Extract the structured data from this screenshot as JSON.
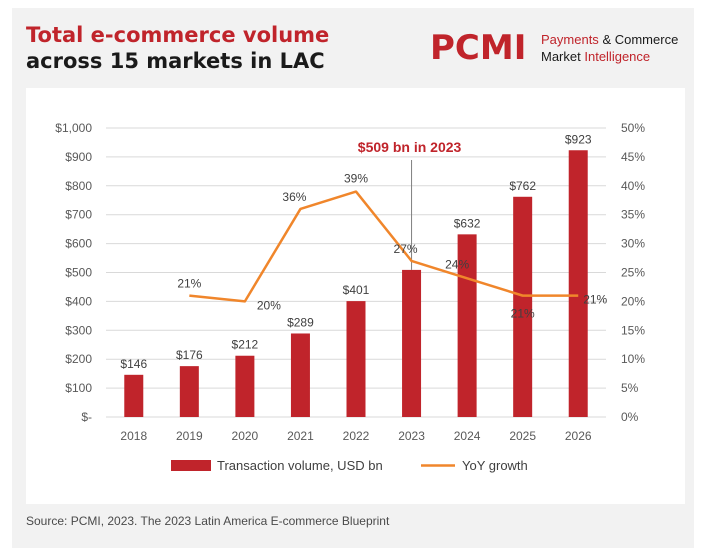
{
  "title": {
    "line1": "Total e-commerce volume",
    "line2": "across 15 markets in LAC"
  },
  "logo": {
    "mark": "PCMI",
    "line1_a": "Payments",
    "line1_amp": "&",
    "line1_b": "Commerce",
    "line2_a": "Market",
    "line2_b": "Intelligence"
  },
  "source": "Source: PCMI, 2023. The 2023 Latin America E-commerce Blueprint",
  "colors": {
    "bar": "#c0242b",
    "line": "#f0862b",
    "accent": "#c0242b"
  },
  "chart_data": {
    "type": "bar",
    "categories": [
      "2018",
      "2019",
      "2020",
      "2021",
      "2022",
      "2023",
      "2024",
      "2025",
      "2026"
    ],
    "series": [
      {
        "name": "Transaction volume, USD bn",
        "type": "bar",
        "axis": "left",
        "values": [
          146,
          176,
          212,
          289,
          401,
          509,
          632,
          762,
          923
        ],
        "labels": [
          "$146",
          "$176",
          "$212",
          "$289",
          "$401",
          "",
          "$632",
          "$762",
          "$923"
        ]
      },
      {
        "name": "YoY growth",
        "type": "line",
        "axis": "right",
        "values": [
          null,
          21,
          20,
          36,
          39,
          27,
          24,
          21,
          21
        ],
        "labels": [
          "",
          "21%",
          "20%",
          "36%",
          "39%",
          "27%",
          "24%",
          "21%",
          "21%"
        ]
      }
    ],
    "ylim_left": [
      0,
      1000
    ],
    "ylim_right": [
      0,
      50
    ],
    "yticks_left": [
      "$-",
      "$100",
      "$200",
      "$300",
      "$400",
      "$500",
      "$600",
      "$700",
      "$800",
      "$900",
      "$1,000"
    ],
    "yticks_right": [
      "0%",
      "5%",
      "10%",
      "15%",
      "20%",
      "25%",
      "30%",
      "35%",
      "40%",
      "45%",
      "50%"
    ],
    "annotation": {
      "text": "$509 bn in 2023",
      "category": "2023"
    },
    "grid": true,
    "legend": "bottom"
  }
}
